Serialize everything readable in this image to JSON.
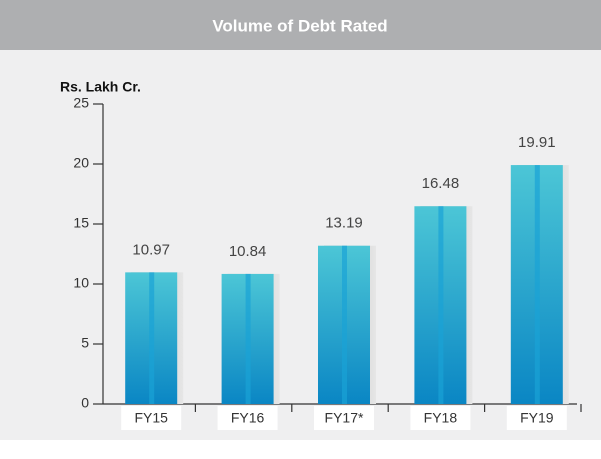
{
  "chart_data": {
    "type": "bar",
    "title": "Volume of Debt Rated",
    "y_label": "Rs. Lakh Cr.",
    "categories": [
      "FY15",
      "FY16",
      "FY17*",
      "FY18",
      "FY19"
    ],
    "values": [
      10.97,
      10.84,
      13.19,
      16.48,
      19.91
    ],
    "color": "#1aa3d6",
    "ylim": [
      0,
      25
    ],
    "yticks": [
      0,
      5,
      10,
      15,
      20,
      25
    ],
    "grid": false
  }
}
